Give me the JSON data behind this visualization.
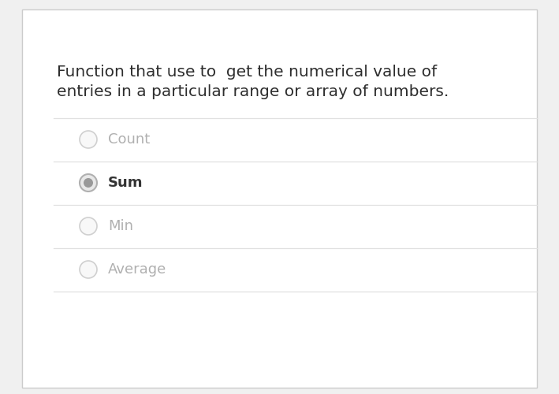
{
  "background_color": "#f0f0f0",
  "card_color": "#ffffff",
  "outer_border_color": "#cccccc",
  "question_text_line1": "Function that use to  get the numerical value of",
  "question_text_line2": "entries in a particular range or array of numbers.",
  "question_font_size": 14.5,
  "question_text_color": "#2d2d2d",
  "options": [
    "Count",
    "Sum",
    "Min",
    "Average"
  ],
  "selected_index": 1,
  "option_font_size": 13,
  "option_text_color_unselected": "#b0b0b0",
  "option_text_color_selected": "#333333",
  "divider_color": "#e0e0e0",
  "radio_outer_color_unselected": "#d0d0d0",
  "radio_outer_color_selected": "#b0b0b0",
  "radio_inner_color_selected": "#999999",
  "radio_fill_unselected": "#f8f8f8",
  "radio_fill_selected": "#e8e8e8"
}
